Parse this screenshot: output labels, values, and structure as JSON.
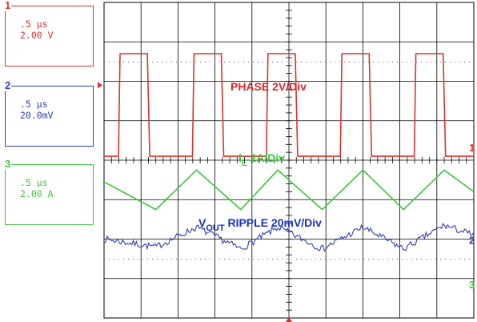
{
  "channels": [
    {
      "num": "1",
      "time_div": ".5 μs",
      "volt_div": "2.00 V",
      "color": "#d9342b"
    },
    {
      "num": "2",
      "time_div": ".5 μs",
      "volt_div": "20.0mV",
      "color": "#2f3fb0"
    },
    {
      "num": "3",
      "time_div": ".5 μs",
      "volt_div": "2.00 A",
      "color": "#3cc63c"
    }
  ],
  "annotations": {
    "phase": "PHASE 2V/Div",
    "il_main": "I",
    "il_sub": "L",
    "il_rest": " 2A/Div",
    "vout_main": "V",
    "vout_sub": "OUT",
    "vout_rest": " RIPPLE  20mV/Div"
  },
  "chart_data": {
    "type": "line",
    "title": "",
    "xlabel": "",
    "ylabel": "",
    "grid": true,
    "x_divisions": 10,
    "y_divisions": 8,
    "time_per_div_us": 0.5,
    "x": [
      0,
      1.4,
      2.5,
      3.7,
      4.7,
      5.9,
      7.0,
      8.1,
      9.2,
      10.0
    ],
    "series": [
      {
        "name": "PHASE 2V/Div",
        "channel": 1,
        "color": "#d9342b",
        "units": "V",
        "volts_per_div": 2,
        "signal": "square",
        "low": 0,
        "high": 5.2,
        "rising_edges_div": [
          0.39,
          1.25,
          2.24,
          2.91
        ],
        "period_div": 2.0,
        "duty": 0.39
      },
      {
        "name": "IL 2A/Div",
        "channel": 3,
        "color": "#3cc63c",
        "units": "A",
        "amps_per_div": 2,
        "signal": "triangle",
        "values": [
          1.9,
          0.5,
          2.5,
          0.5,
          2.5,
          0.5,
          2.5,
          0.5,
          2.5,
          1.4
        ]
      },
      {
        "name": "VOUT RIPPLE 20mV/Div",
        "channel": 2,
        "color": "#2f3fb0",
        "units": "mV",
        "mv_per_div": 20,
        "signal": "ripple",
        "values": [
          0,
          -4,
          6,
          -5,
          6,
          -5,
          6,
          -5,
          7,
          2
        ]
      }
    ]
  }
}
